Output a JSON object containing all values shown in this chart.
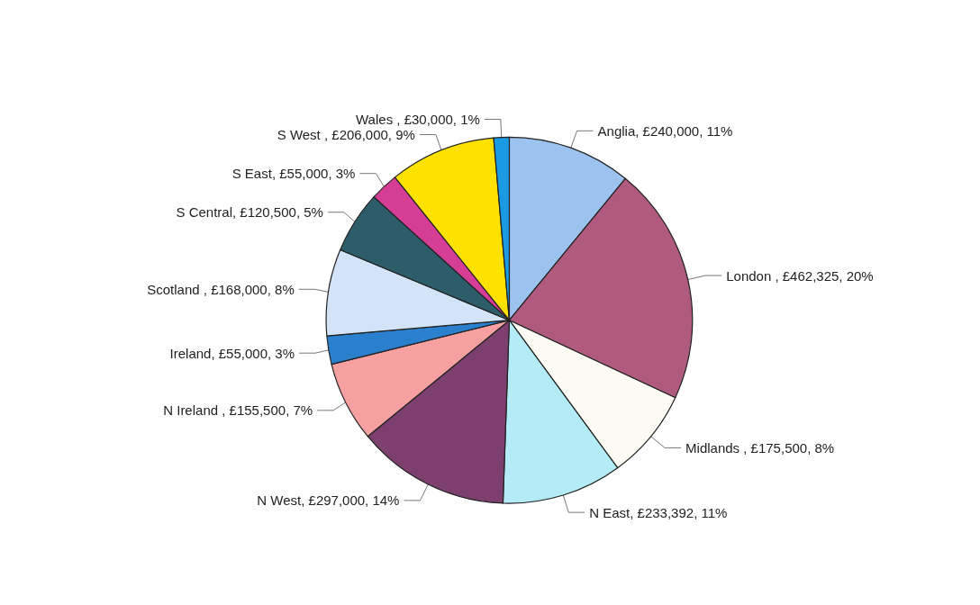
{
  "chart_data": {
    "type": "pie",
    "categories": [
      "Anglia, £240,000, 11%",
      "London , £462,325, 20%",
      "Midlands , £175,500, 8%",
      "N East, £233,392, 11%",
      "N West, £297,000, 14%",
      "N Ireland , £155,500, 7%",
      "Ireland, £55,000, 3%",
      "Scotland , £168,000, 8%",
      "S Central, £120,500, 5%",
      "S East, £55,000, 3%",
      "S West , £206,000, 9%",
      "Wales , £30,000, 1%"
    ],
    "values": [
      240000,
      462325,
      175500,
      233392,
      297000,
      155500,
      55000,
      168000,
      120500,
      55000,
      206000,
      30000
    ],
    "colors": [
      "#9cc3f0",
      "#b05a80",
      "#fdfcf4",
      "#b3ebf6",
      "#7c3f6e",
      "#f6a0a2",
      "#2a80cc",
      "#d3e3f8",
      "#2d5d68",
      "#d63e96",
      "#fde200",
      "#1a9ae2"
    ],
    "legend": false
  }
}
